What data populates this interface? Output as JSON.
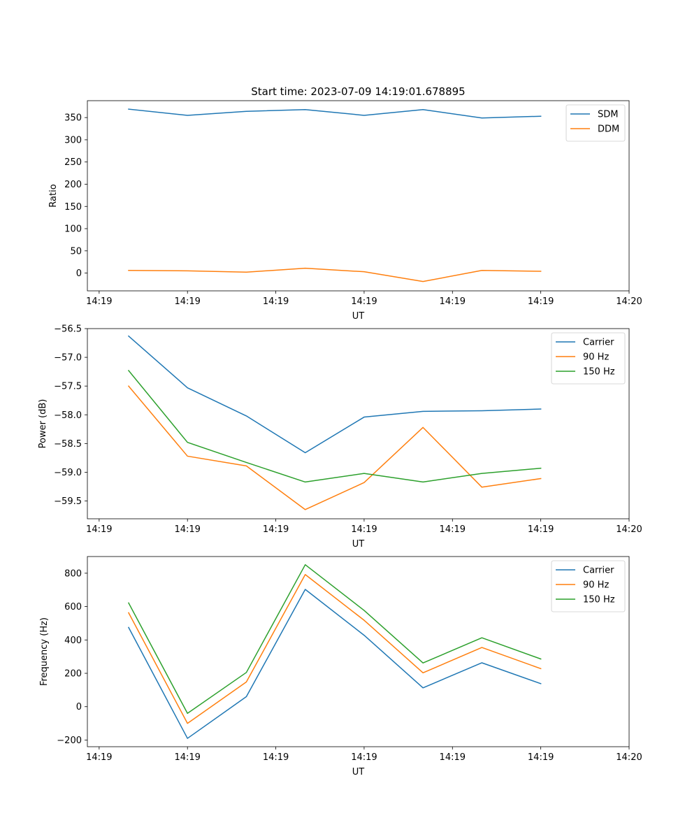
{
  "figure": {
    "title": "Start time: 2023-07-09 14:19:01.678895"
  },
  "chart_data": [
    {
      "type": "line",
      "title": "Start time: 2023-07-09 14:19:01.678895",
      "xlabel": "UT",
      "ylabel": "Ratio",
      "x": [
        1,
        2,
        3,
        4,
        5,
        6,
        7,
        8
      ],
      "xlim": [
        0.3,
        9.5
      ],
      "xticks": [
        0.5,
        2.0,
        3.5,
        5.0,
        6.5,
        8.0,
        9.5
      ],
      "xtick_labels": [
        "14:19",
        "14:19",
        "14:19",
        "14:19",
        "14:19",
        "14:19",
        "14:20"
      ],
      "ylim": [
        -40,
        388
      ],
      "yticks": [
        0,
        50,
        100,
        150,
        200,
        250,
        300,
        350
      ],
      "ytick_labels": [
        "0",
        "50",
        "100",
        "150",
        "200",
        "250",
        "300",
        "350"
      ],
      "legend_position": "top-right",
      "series": [
        {
          "name": "SDM",
          "color": "#1f77b4",
          "values": [
            369,
            355,
            364,
            368,
            355,
            368,
            349,
            353
          ]
        },
        {
          "name": "DDM",
          "color": "#ff7f0e",
          "values": [
            6,
            5,
            2,
            11,
            3,
            -19,
            6,
            4
          ]
        }
      ]
    },
    {
      "type": "line",
      "title": "",
      "xlabel": "UT",
      "ylabel": "Power (dB)",
      "x": [
        1,
        2,
        3,
        4,
        5,
        6,
        7,
        8
      ],
      "xlim": [
        0.3,
        9.5
      ],
      "xticks": [
        0.5,
        2.0,
        3.5,
        5.0,
        6.5,
        8.0,
        9.5
      ],
      "xtick_labels": [
        "14:19",
        "14:19",
        "14:19",
        "14:19",
        "14:19",
        "14:19",
        "14:20"
      ],
      "ylim": [
        -59.81,
        -56.5
      ],
      "yticks": [
        -59.5,
        -59.0,
        -58.5,
        -58.0,
        -57.5,
        -57.0,
        -56.5
      ],
      "ytick_labels": [
        "−59.5",
        "−59.0",
        "−58.5",
        "−58.0",
        "−57.5",
        "−57.0",
        "−56.5"
      ],
      "legend_position": "top-right",
      "series": [
        {
          "name": "Carrier",
          "color": "#1f77b4",
          "values": [
            -56.63,
            -57.53,
            -58.02,
            -58.66,
            -58.04,
            -57.94,
            -57.93,
            -57.9
          ]
        },
        {
          "name": "90 Hz",
          "color": "#ff7f0e",
          "values": [
            -57.5,
            -58.72,
            -58.89,
            -59.65,
            -59.18,
            -58.22,
            -59.26,
            -59.11
          ]
        },
        {
          "name": "150 Hz",
          "color": "#2ca02c",
          "values": [
            -57.23,
            -58.48,
            -58.83,
            -59.17,
            -59.02,
            -59.17,
            -59.02,
            -58.93
          ]
        }
      ]
    },
    {
      "type": "line",
      "title": "",
      "xlabel": "UT",
      "ylabel": "Frequency (Hz)",
      "x": [
        1,
        2,
        3,
        4,
        5,
        6,
        7,
        8
      ],
      "xlim": [
        0.3,
        9.5
      ],
      "xticks": [
        0.5,
        2.0,
        3.5,
        5.0,
        6.5,
        8.0,
        9.5
      ],
      "xtick_labels": [
        "14:19",
        "14:19",
        "14:19",
        "14:19",
        "14:19",
        "14:19",
        "14:20"
      ],
      "ylim": [
        -240,
        900
      ],
      "yticks": [
        -200,
        0,
        200,
        400,
        600,
        800
      ],
      "ytick_labels": [
        "−200",
        "0",
        "200",
        "400",
        "600",
        "800"
      ],
      "legend_position": "top-right",
      "series": [
        {
          "name": "Carrier",
          "color": "#1f77b4",
          "values": [
            475,
            -190,
            60,
            703,
            428,
            113,
            263,
            138
          ]
        },
        {
          "name": "90 Hz",
          "color": "#ff7f0e",
          "values": [
            563,
            -100,
            148,
            792,
            518,
            203,
            355,
            228
          ]
        },
        {
          "name": "150 Hz",
          "color": "#2ca02c",
          "values": [
            622,
            -40,
            205,
            851,
            577,
            262,
            413,
            286
          ]
        }
      ]
    }
  ]
}
